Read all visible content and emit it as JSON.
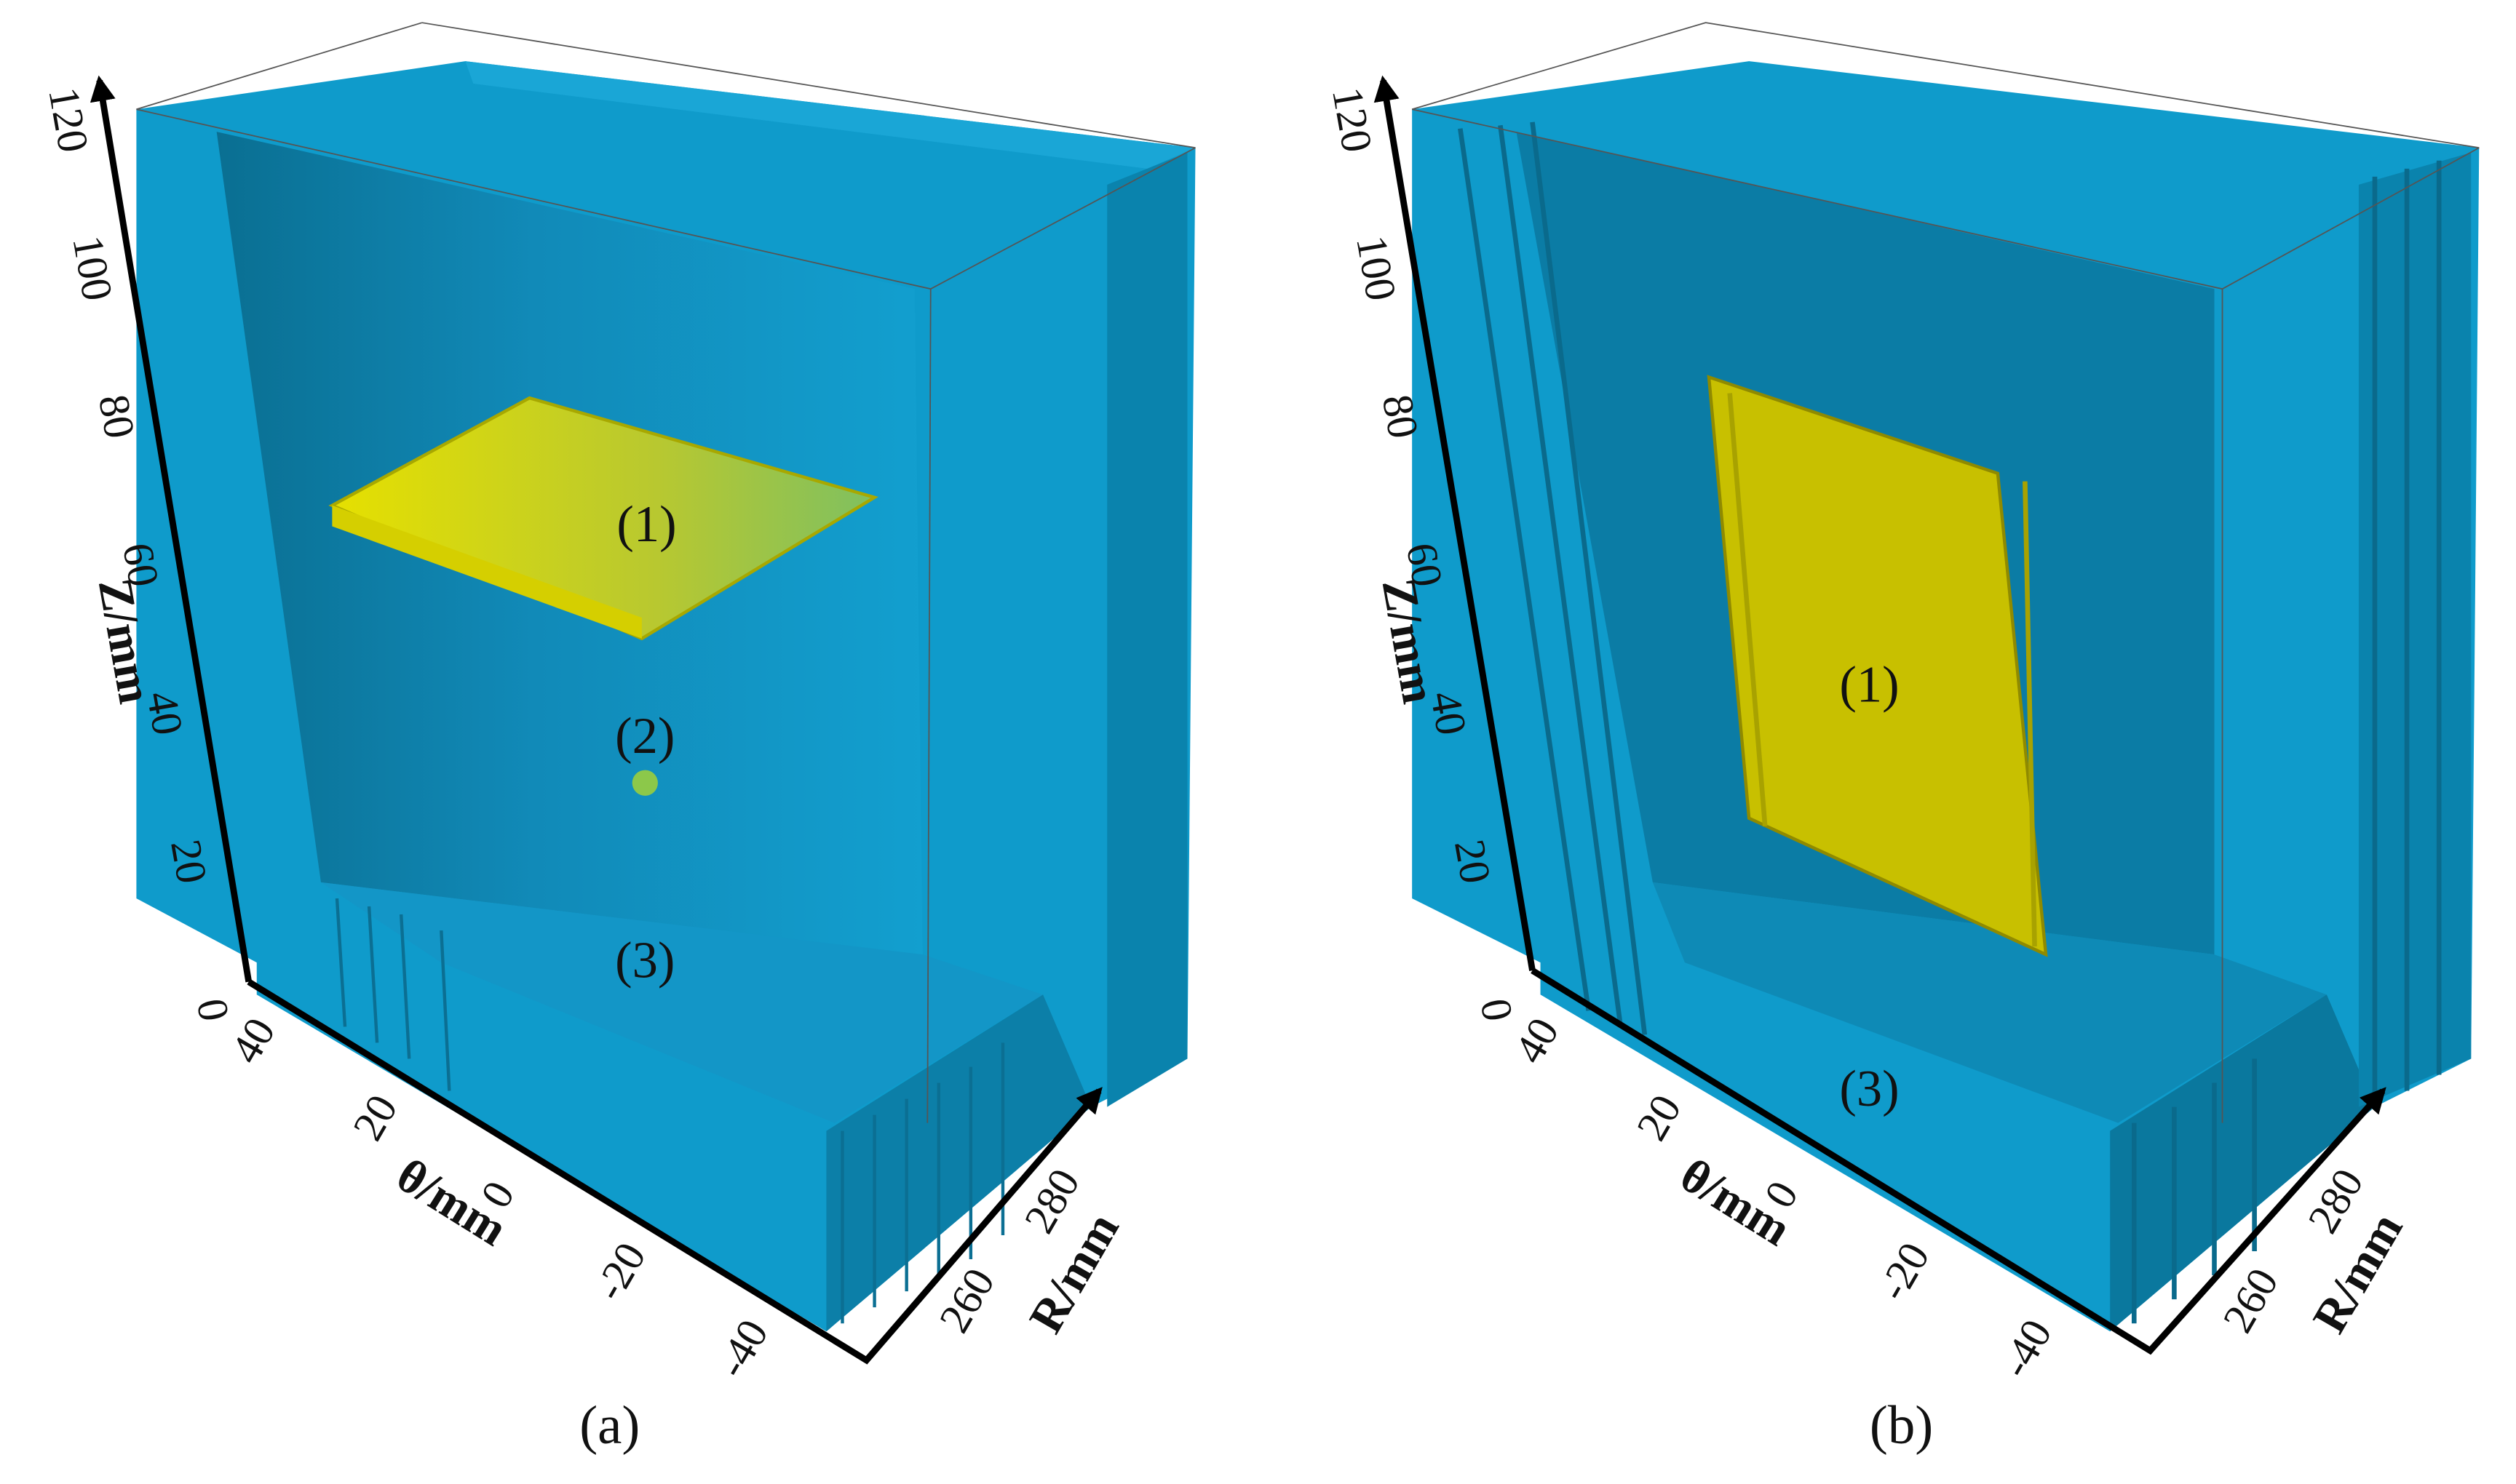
{
  "panels": [
    {
      "caption": "(a)",
      "z_axis": {
        "label": "Z/mm",
        "ticks": [
          "0",
          "20",
          "40",
          "60",
          "80",
          "100",
          "120"
        ]
      },
      "theta_axis": {
        "label": "θ/mm",
        "ticks": [
          "40",
          "20",
          "0",
          "-20",
          "-40"
        ]
      },
      "r_axis": {
        "label": "R/mm",
        "ticks": [
          "260",
          "280"
        ]
      },
      "regions": [
        "(1)",
        "(2)",
        "(3)"
      ]
    },
    {
      "caption": "(b)",
      "z_axis": {
        "label": "Z/mm",
        "ticks": [
          "0",
          "20",
          "40",
          "60",
          "80",
          "100",
          "120"
        ]
      },
      "theta_axis": {
        "label": "θ/mm",
        "ticks": [
          "40",
          "20",
          "0",
          "-20",
          "-40"
        ]
      },
      "r_axis": {
        "label": "R/mm",
        "ticks": [
          "260",
          "280"
        ]
      },
      "regions": [
        "(1)",
        "(3)"
      ]
    }
  ]
}
